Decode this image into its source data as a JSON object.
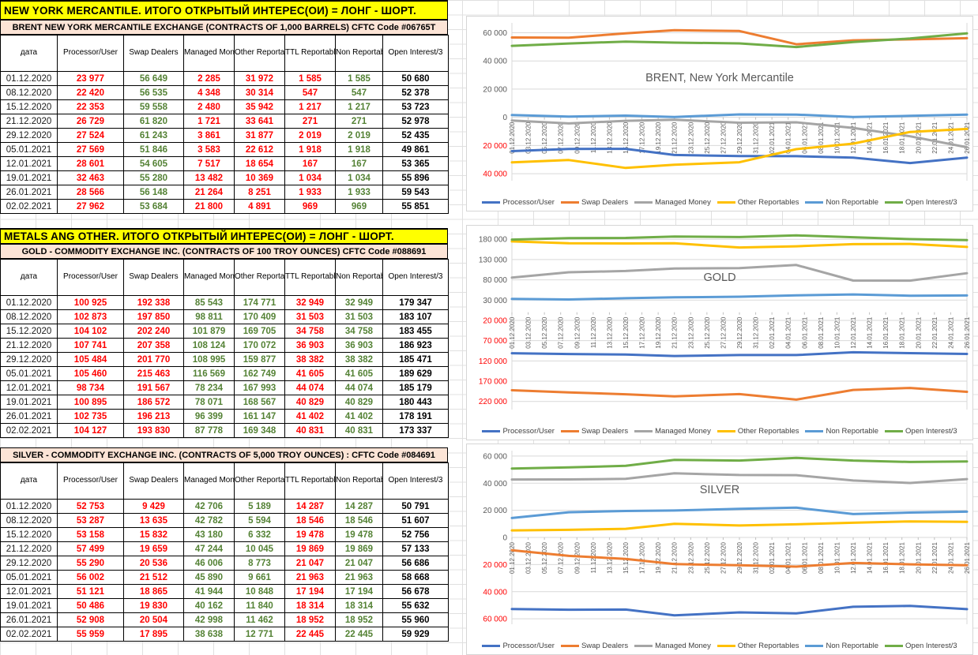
{
  "colors": {
    "short_red": "#FF0000",
    "long_green": "#548235",
    "total_black": "#000000",
    "banner_bg": "#FFFF00",
    "table_title_bg": "#FCE4D6",
    "chart_text": "#595959",
    "negative_axis_label": "#FF0000"
  },
  "banners": [
    {
      "text": "NEW YORK MERCANTILE. ИТОГО ОТКРЫТЫЙ ИНТЕРЕС(ОИ) = ЛОНГ - ШОРТ."
    },
    {
      "text": "METALS ANG OTHER. ИТОГО ОТКРЫТЫЙ ИНТЕРЕС(ОИ) = ЛОНГ - ШОРТ."
    }
  ],
  "table_columns": [
    "дата",
    "Processor/User",
    "Swap Dealers",
    "Managed Money",
    "Other Reportables",
    "TTL Reportables",
    "Non Reportable",
    "Open Interest/3"
  ],
  "tables": [
    {
      "name": "brent",
      "title": "BRENT NEW YORK MERCANTILE EXCHANGE (CONTRACTS OF 1,000 BARRELS) CFTC Code #06765T",
      "value_colors": [
        "red",
        "green",
        "red",
        "red",
        "red",
        "green",
        "black"
      ],
      "rows": [
        {
          "date": "01.12.2020",
          "values": [
            "23 977",
            "56 649",
            "2 285",
            "31 972",
            "1 585",
            "1 585",
            "50 680"
          ]
        },
        {
          "date": "08.12.2020",
          "values": [
            "22 420",
            "56 535",
            "4 348",
            "30 314",
            "547",
            "547",
            "52 378"
          ]
        },
        {
          "date": "15.12.2020",
          "values": [
            "22 353",
            "59 558",
            "2 480",
            "35 942",
            "1 217",
            "1 217",
            "53 723"
          ]
        },
        {
          "date": "21.12.2020",
          "values": [
            "26 729",
            "61 820",
            "1 721",
            "33 641",
            "271",
            "271",
            "52 978"
          ]
        },
        {
          "date": "29.12.2020",
          "values": [
            "27 524",
            "61 243",
            "3 861",
            "31 877",
            "2 019",
            "2 019",
            "52 435"
          ]
        },
        {
          "date": "05.01.2021",
          "values": [
            "27 569",
            "51 846",
            "3 583",
            "22 612",
            "1 918",
            "1 918",
            "49 861"
          ]
        },
        {
          "date": "12.01.2021",
          "values": [
            "28 601",
            "54 605",
            "7 517",
            "18 654",
            "167",
            "167",
            "53 365"
          ]
        },
        {
          "date": "19.01.2021",
          "values": [
            "32 463",
            "55 280",
            "13 482",
            "10 369",
            "1 034",
            "1 034",
            "55 896"
          ]
        },
        {
          "date": "26.01.2021",
          "values": [
            "28 566",
            "56 148",
            "21 264",
            "8 251",
            "1 933",
            "1 933",
            "59 543"
          ]
        },
        {
          "date": "02.02.2021",
          "values": [
            "27 962",
            "53 684",
            "21 800",
            "4 891",
            "969",
            "969",
            "55 851"
          ]
        }
      ]
    },
    {
      "name": "gold",
      "title": "GOLD - COMMODITY EXCHANGE INC. (CONTRACTS OF 100 TROY OUNCES)  CFTC Code #088691",
      "value_colors": [
        "red",
        "red",
        "green",
        "green",
        "red",
        "green",
        "black"
      ],
      "rows": [
        {
          "date": "01.12.2020",
          "values": [
            "100 925",
            "192 338",
            "85 543",
            "174 771",
            "32 949",
            "32 949",
            "179 347"
          ]
        },
        {
          "date": "08.12.2020",
          "values": [
            "102 873",
            "197 850",
            "98 811",
            "170 409",
            "31 503",
            "31 503",
            "183 107"
          ]
        },
        {
          "date": "15.12.2020",
          "values": [
            "104 102",
            "202 240",
            "101 879",
            "169 705",
            "34 758",
            "34 758",
            "183 455"
          ]
        },
        {
          "date": "21.12.2020",
          "values": [
            "107 741",
            "207 358",
            "108 124",
            "170 072",
            "36 903",
            "36 903",
            "186 923"
          ]
        },
        {
          "date": "29.12.2020",
          "values": [
            "105 484",
            "201 770",
            "108 995",
            "159 877",
            "38 382",
            "38 382",
            "185 471"
          ]
        },
        {
          "date": "05.01.2021",
          "values": [
            "105 460",
            "215 463",
            "116 569",
            "162 749",
            "41 605",
            "41 605",
            "189 629"
          ]
        },
        {
          "date": "12.01.2021",
          "values": [
            "98 734",
            "191 567",
            "78 234",
            "167 993",
            "44 074",
            "44 074",
            "185 179"
          ]
        },
        {
          "date": "19.01.2021",
          "values": [
            "100 895",
            "186 572",
            "78 071",
            "168 567",
            "40 829",
            "40 829",
            "180 443"
          ]
        },
        {
          "date": "26.01.2021",
          "values": [
            "102 735",
            "196 213",
            "96 399",
            "161 147",
            "41 402",
            "41 402",
            "178 191"
          ]
        },
        {
          "date": "02.02.2021",
          "values": [
            "104 127",
            "193 830",
            "87 778",
            "169 348",
            "40 831",
            "40 831",
            "173 337"
          ]
        }
      ]
    },
    {
      "name": "silver",
      "title": "SILVER - COMMODITY EXCHANGE INC. (CONTRACTS OF 5,000 TROY OUNCES) :  CFTC Code #084691",
      "value_colors": [
        "red",
        "red",
        "green",
        "green",
        "red",
        "green",
        "black"
      ],
      "rows": [
        {
          "date": "01.12.2020",
          "values": [
            "52 753",
            "9 429",
            "42 706",
            "5 189",
            "14 287",
            "14 287",
            "50 791"
          ]
        },
        {
          "date": "08.12.2020",
          "values": [
            "53 287",
            "13 635",
            "42 782",
            "5 594",
            "18 546",
            "18 546",
            "51 607"
          ]
        },
        {
          "date": "15.12.2020",
          "values": [
            "53 158",
            "15 832",
            "43 180",
            "6 332",
            "19 478",
            "19 478",
            "52 756"
          ]
        },
        {
          "date": "21.12.2020",
          "values": [
            "57 499",
            "19 659",
            "47 244",
            "10 045",
            "19 869",
            "19 869",
            "57 133"
          ]
        },
        {
          "date": "29.12.2020",
          "values": [
            "55 290",
            "20 536",
            "46 006",
            "8 773",
            "21 047",
            "21 047",
            "56 686"
          ]
        },
        {
          "date": "05.01.2021",
          "values": [
            "56 002",
            "21 512",
            "45 890",
            "9 661",
            "21 963",
            "21 963",
            "58 668"
          ]
        },
        {
          "date": "12.01.2021",
          "values": [
            "51 121",
            "18 865",
            "41 944",
            "10 848",
            "17 194",
            "17 194",
            "56 678"
          ]
        },
        {
          "date": "19.01.2021",
          "values": [
            "50 486",
            "19 830",
            "40 162",
            "11 840",
            "18 314",
            "18 314",
            "55 632"
          ]
        },
        {
          "date": "26.01.2021",
          "values": [
            "52 908",
            "20 504",
            "42 998",
            "11 462",
            "18 952",
            "18 952",
            "55 960"
          ]
        },
        {
          "date": "02.02.2021",
          "values": [
            "55 959",
            "17 895",
            "38 638",
            "12 771",
            "22 445",
            "22 445",
            "59 929"
          ]
        }
      ]
    }
  ],
  "chart_data": [
    {
      "type": "line",
      "title": "BRENT, New York Mercantile",
      "x": [
        "01.12.2020",
        "08.12.2020",
        "15.12.2020",
        "21.12.2020",
        "29.12.2020",
        "05.01.2021",
        "12.01.2021",
        "19.01.2021",
        "26.01.2021"
      ],
      "x_days": [
        0,
        7,
        14,
        20,
        28,
        35,
        42,
        49,
        56
      ],
      "x_axis_tick_labels": [
        "01.12.2020",
        "03.12.2020",
        "05.12.2020",
        "07.12.2020",
        "09.12.2020",
        "11.12.2020",
        "13.12.2020",
        "15.12.2020",
        "17.12.2020",
        "19.12.2020",
        "21.12.2020",
        "23.12.2020",
        "25.12.2020",
        "27.12.2020",
        "29.12.2020",
        "31.12.2020",
        "02.01.2021",
        "04.01.2021",
        "06.01.2021",
        "08.01.2021",
        "10.01.2021",
        "12.01.2021",
        "14.01.2021",
        "16.01.2021",
        "18.01.2021",
        "20.01.2021",
        "22.01.2021",
        "24.01.2021",
        "26.01.2021"
      ],
      "yticks": [
        60000,
        40000,
        20000,
        0,
        -20000,
        -40000
      ],
      "ylim": [
        -45000,
        67000
      ],
      "grid": true,
      "legend_position": "bottom",
      "series": [
        {
          "name": "Processor/User",
          "color": "#4472C4",
          "values": [
            -23977,
            -22420,
            -22353,
            -26729,
            -27524,
            -27569,
            -28601,
            -32463,
            -28566
          ]
        },
        {
          "name": "Swap Dealers",
          "color": "#ED7D31",
          "values": [
            56649,
            56535,
            59558,
            61820,
            61243,
            51846,
            54605,
            55280,
            56148
          ]
        },
        {
          "name": "Managed Money",
          "color": "#A5A5A5",
          "values": [
            -2285,
            -4348,
            -2480,
            -1721,
            -3861,
            -3583,
            -7517,
            -13482,
            -21264
          ]
        },
        {
          "name": "Other Reportables",
          "color": "#FFC000",
          "values": [
            -31972,
            -30314,
            -35942,
            -33641,
            -31877,
            -22612,
            -18654,
            -10369,
            -8251
          ]
        },
        {
          "name": "Non Reportable",
          "color": "#5B9BD5",
          "values": [
            1585,
            547,
            1217,
            271,
            2019,
            1918,
            167,
            1034,
            1933
          ]
        },
        {
          "name": "Open Interest/3",
          "color": "#70AD47",
          "values": [
            50680,
            52378,
            53723,
            52978,
            52435,
            49861,
            53365,
            55896,
            59543
          ]
        }
      ]
    },
    {
      "type": "line",
      "title": "GOLD",
      "x": [
        "01.12.2020",
        "08.12.2020",
        "15.12.2020",
        "21.12.2020",
        "29.12.2020",
        "05.01.2021",
        "12.01.2021",
        "19.01.2021",
        "26.01.2021"
      ],
      "x_days": [
        0,
        7,
        14,
        20,
        28,
        35,
        42,
        49,
        56
      ],
      "x_axis_tick_labels": [
        "01.12.2020",
        "03.12.2020",
        "05.12.2020",
        "07.12.2020",
        "09.12.2020",
        "11.12.2020",
        "13.12.2020",
        "15.12.2020",
        "17.12.2020",
        "19.12.2020",
        "21.12.2020",
        "23.12.2020",
        "25.12.2020",
        "27.12.2020",
        "29.12.2020",
        "31.12.2020",
        "02.01.2021",
        "04.01.2021",
        "06.01.2021",
        "08.01.2021",
        "10.01.2021",
        "12.01.2021",
        "14.01.2021",
        "16.01.2021",
        "18.01.2021",
        "20.01.2021",
        "22.01.2021",
        "24.01.2021",
        "26.01.2021"
      ],
      "yticks": [
        180000,
        130000,
        80000,
        30000,
        -20000,
        -70000,
        -120000,
        -170000,
        -220000
      ],
      "ylim": [
        -240000,
        198000
      ],
      "grid": true,
      "legend_position": "bottom",
      "series": [
        {
          "name": "Processor/User",
          "color": "#4472C4",
          "values": [
            -100925,
            -102873,
            -104102,
            -107741,
            -105484,
            -105460,
            -98734,
            -100895,
            -102735
          ]
        },
        {
          "name": "Swap Dealers",
          "color": "#ED7D31",
          "values": [
            -192338,
            -197850,
            -202240,
            -207358,
            -201770,
            -215463,
            -191567,
            -186572,
            -196213
          ]
        },
        {
          "name": "Managed Money",
          "color": "#A5A5A5",
          "values": [
            85543,
            98811,
            101879,
            108124,
            108995,
            116569,
            78234,
            78071,
            96399
          ]
        },
        {
          "name": "Other Reportables",
          "color": "#FFC000",
          "values": [
            174771,
            170409,
            169705,
            170072,
            159877,
            162749,
            167993,
            168567,
            161147
          ]
        },
        {
          "name": "Non Reportable",
          "color": "#5B9BD5",
          "values": [
            32949,
            31503,
            34758,
            36903,
            38382,
            41605,
            44074,
            40829,
            41402
          ]
        },
        {
          "name": "Open Interest/3",
          "color": "#70AD47",
          "values": [
            179347,
            183107,
            183455,
            186923,
            185471,
            189629,
            185179,
            180443,
            178191
          ]
        }
      ]
    },
    {
      "type": "line",
      "title": "SILVER",
      "x": [
        "01.12.2020",
        "08.12.2020",
        "15.12.2020",
        "21.12.2020",
        "29.12.2020",
        "05.01.2021",
        "12.01.2021",
        "19.01.2021",
        "26.01.2021"
      ],
      "x_days": [
        0,
        7,
        14,
        20,
        28,
        35,
        42,
        49,
        56
      ],
      "x_axis_tick_labels": [
        "01.12.2020",
        "03.12.2020",
        "05.12.2020",
        "07.12.2020",
        "09.12.2020",
        "11.12.2020",
        "13.12.2020",
        "15.12.2020",
        "17.12.2020",
        "19.12.2020",
        "21.12.2020",
        "23.12.2020",
        "25.12.2020",
        "27.12.2020",
        "29.12.2020",
        "31.12.2020",
        "02.01.2021",
        "04.01.2021",
        "06.01.2021",
        "08.01.2021",
        "10.01.2021",
        "12.01.2021",
        "14.01.2021",
        "16.01.2021",
        "18.01.2021",
        "20.01.2021",
        "22.01.2021",
        "24.01.2021",
        "26.01.2021"
      ],
      "yticks": [
        60000,
        40000,
        20000,
        0,
        -20000,
        -40000,
        -60000
      ],
      "ylim": [
        -64000,
        64000
      ],
      "grid": true,
      "legend_position": "bottom",
      "series": [
        {
          "name": "Processor/User",
          "color": "#4472C4",
          "values": [
            -52753,
            -53287,
            -53158,
            -57499,
            -55290,
            -56002,
            -51121,
            -50486,
            -52908
          ]
        },
        {
          "name": "Swap Dealers",
          "color": "#ED7D31",
          "values": [
            -9429,
            -13635,
            -15832,
            -19659,
            -20536,
            -21512,
            -18865,
            -19830,
            -20504
          ]
        },
        {
          "name": "Managed Money",
          "color": "#A5A5A5",
          "values": [
            42706,
            42782,
            43180,
            47244,
            46006,
            45890,
            41944,
            40162,
            42998
          ]
        },
        {
          "name": "Other Reportables",
          "color": "#FFC000",
          "values": [
            5189,
            5594,
            6332,
            10045,
            8773,
            9661,
            10848,
            11840,
            11462
          ]
        },
        {
          "name": "Non Reportable",
          "color": "#5B9BD5",
          "values": [
            14287,
            18546,
            19478,
            19869,
            21047,
            21963,
            17194,
            18314,
            18952
          ]
        },
        {
          "name": "Open Interest/3",
          "color": "#70AD47",
          "values": [
            50791,
            51607,
            52756,
            57133,
            56686,
            58668,
            56678,
            55632,
            55960
          ]
        }
      ]
    }
  ]
}
